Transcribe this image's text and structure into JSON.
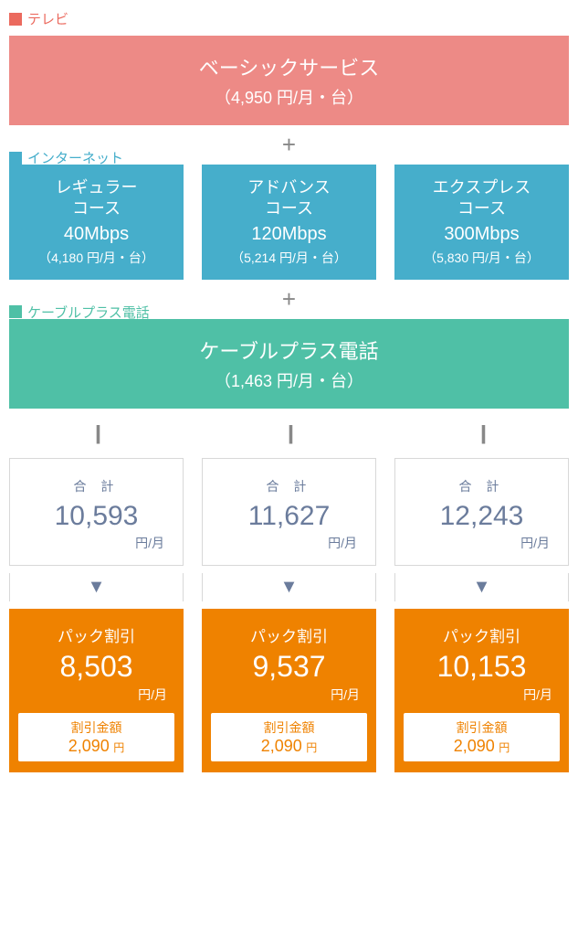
{
  "colors": {
    "tv_square": "#eb6a5e",
    "tv_text": "#eb6a5e",
    "tv_box_bg": "#ed8a86",
    "net_square": "#46aecb",
    "net_text": "#46aecb",
    "net_box_bg": "#46aecb",
    "phone_square": "#4fc0a6",
    "phone_text": "#4fc0a6",
    "phone_box_bg": "#4fc0a6",
    "sum_text": "#6b7c9c",
    "pack_bg": "#ef8200"
  },
  "tv": {
    "label": "テレビ",
    "title": "ベーシックサービス",
    "price": "（4,950 円/月・台）"
  },
  "internet": {
    "label": "インターネット",
    "plans": [
      {
        "name_l1": "レギュラー",
        "name_l2": "コース",
        "speed": "40Mbps",
        "price": "（4,180 円/月・台）"
      },
      {
        "name_l1": "アドバンス",
        "name_l2": "コース",
        "speed": "120Mbps",
        "price": "（5,214 円/月・台）"
      },
      {
        "name_l1": "エクスプレス",
        "name_l2": "コース",
        "speed": "300Mbps",
        "price": "（5,830 円/月・台）"
      }
    ]
  },
  "phone": {
    "label": "ケーブルプラス電話",
    "title": "ケーブルプラス電話",
    "price": "（1,463 円/月・台）"
  },
  "results": [
    {
      "sum_label": "合 計",
      "sum_price": "10,593",
      "sum_unit": "円/月",
      "pack_label": "パック割引",
      "pack_price": "8,503",
      "pack_unit": "円/月",
      "disc_label": "割引金額",
      "disc_amount": "2,090",
      "disc_yen": "円"
    },
    {
      "sum_label": "合 計",
      "sum_price": "11,627",
      "sum_unit": "円/月",
      "pack_label": "パック割引",
      "pack_price": "9,537",
      "pack_unit": "円/月",
      "disc_label": "割引金額",
      "disc_amount": "2,090",
      "disc_yen": "円"
    },
    {
      "sum_label": "合 計",
      "sum_price": "12,243",
      "sum_unit": "円/月",
      "pack_label": "パック割引",
      "pack_price": "10,153",
      "pack_unit": "円/月",
      "disc_label": "割引金額",
      "disc_amount": "2,090",
      "disc_yen": "円"
    }
  ],
  "symbols": {
    "plus": "+",
    "equals": "||",
    "down": "▼"
  }
}
